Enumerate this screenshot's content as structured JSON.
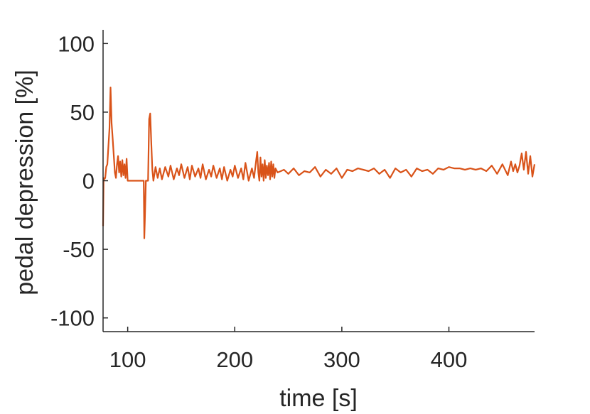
{
  "chart_data": {
    "type": "line",
    "title": "",
    "xlabel": "time [s]",
    "ylabel": "pedal depression [%]",
    "xlim": [
      77,
      480
    ],
    "ylim": [
      -110,
      110
    ],
    "xticks": [
      100,
      200,
      300,
      400
    ],
    "yticks": [
      -100,
      -50,
      0,
      50,
      100
    ],
    "xtick_labels": [
      "100",
      "200",
      "300",
      "400"
    ],
    "ytick_labels": [
      "-100",
      "-50",
      "0",
      "50",
      "100"
    ],
    "grid": false,
    "legend": "none",
    "series": [
      {
        "color": "#d95319",
        "x": [
          77,
          77.5,
          78,
          79,
          80,
          81,
          82,
          83,
          84,
          85,
          86,
          87,
          88,
          89,
          90,
          91,
          92,
          93,
          94,
          95,
          96,
          97,
          98,
          99,
          100,
          101,
          102,
          103,
          104,
          105,
          106,
          108,
          110,
          112,
          114,
          115,
          115.5,
          116,
          117,
          118,
          119,
          120,
          121,
          122,
          123,
          124,
          126,
          128,
          130,
          132,
          135,
          138,
          140,
          143,
          146,
          148,
          150,
          153,
          156,
          158,
          160,
          163,
          166,
          168,
          170,
          173,
          176,
          178,
          180,
          183,
          186,
          188,
          190,
          193,
          196,
          198,
          200,
          203,
          206,
          208,
          210,
          213,
          216,
          218,
          220,
          221,
          222,
          223,
          224,
          225,
          226,
          227,
          228,
          229,
          230,
          231,
          232,
          233,
          234,
          235,
          236,
          237,
          238,
          240,
          243,
          246,
          250,
          255,
          260,
          265,
          270,
          275,
          280,
          285,
          290,
          295,
          300,
          305,
          310,
          315,
          320,
          325,
          330,
          335,
          340,
          345,
          350,
          355,
          360,
          365,
          370,
          375,
          380,
          385,
          390,
          395,
          400,
          405,
          410,
          415,
          420,
          425,
          430,
          435,
          440,
          445,
          450,
          455,
          458,
          460,
          462,
          464,
          466,
          468,
          470,
          472,
          474,
          476,
          478,
          480
        ],
        "y": [
          -33,
          2,
          1,
          2,
          10,
          12,
          25,
          38,
          68,
          42,
          30,
          18,
          6,
          2,
          12,
          18,
          6,
          14,
          3,
          15,
          4,
          12,
          2,
          16,
          0,
          0,
          0,
          0,
          0,
          0,
          0,
          0,
          0,
          0,
          0,
          0,
          -42,
          -30,
          0,
          0,
          0,
          45,
          49,
          28,
          8,
          0,
          10,
          2,
          9,
          1,
          10,
          3,
          11,
          1,
          9,
          4,
          12,
          2,
          10,
          1,
          11,
          3,
          9,
          2,
          12,
          1,
          8,
          3,
          11,
          2,
          9,
          1,
          10,
          0,
          8,
          3,
          11,
          2,
          9,
          1,
          13,
          0,
          9,
          2,
          15,
          21,
          6,
          0,
          17,
          3,
          12,
          0,
          15,
          2,
          11,
          4,
          13,
          1,
          14,
          3,
          12,
          2,
          9,
          6,
          7,
          8,
          5,
          9,
          4,
          7,
          6,
          10,
          3,
          8,
          5,
          9,
          2,
          8,
          7,
          9,
          8,
          7,
          9,
          5,
          8,
          2,
          9,
          6,
          8,
          3,
          9,
          7,
          8,
          5,
          9,
          8,
          10,
          9,
          9,
          8,
          9,
          8,
          9,
          7,
          11,
          5,
          12,
          4,
          14,
          7,
          12,
          6,
          11,
          20,
          8,
          21,
          5,
          18,
          3,
          12
        ]
      }
    ]
  }
}
